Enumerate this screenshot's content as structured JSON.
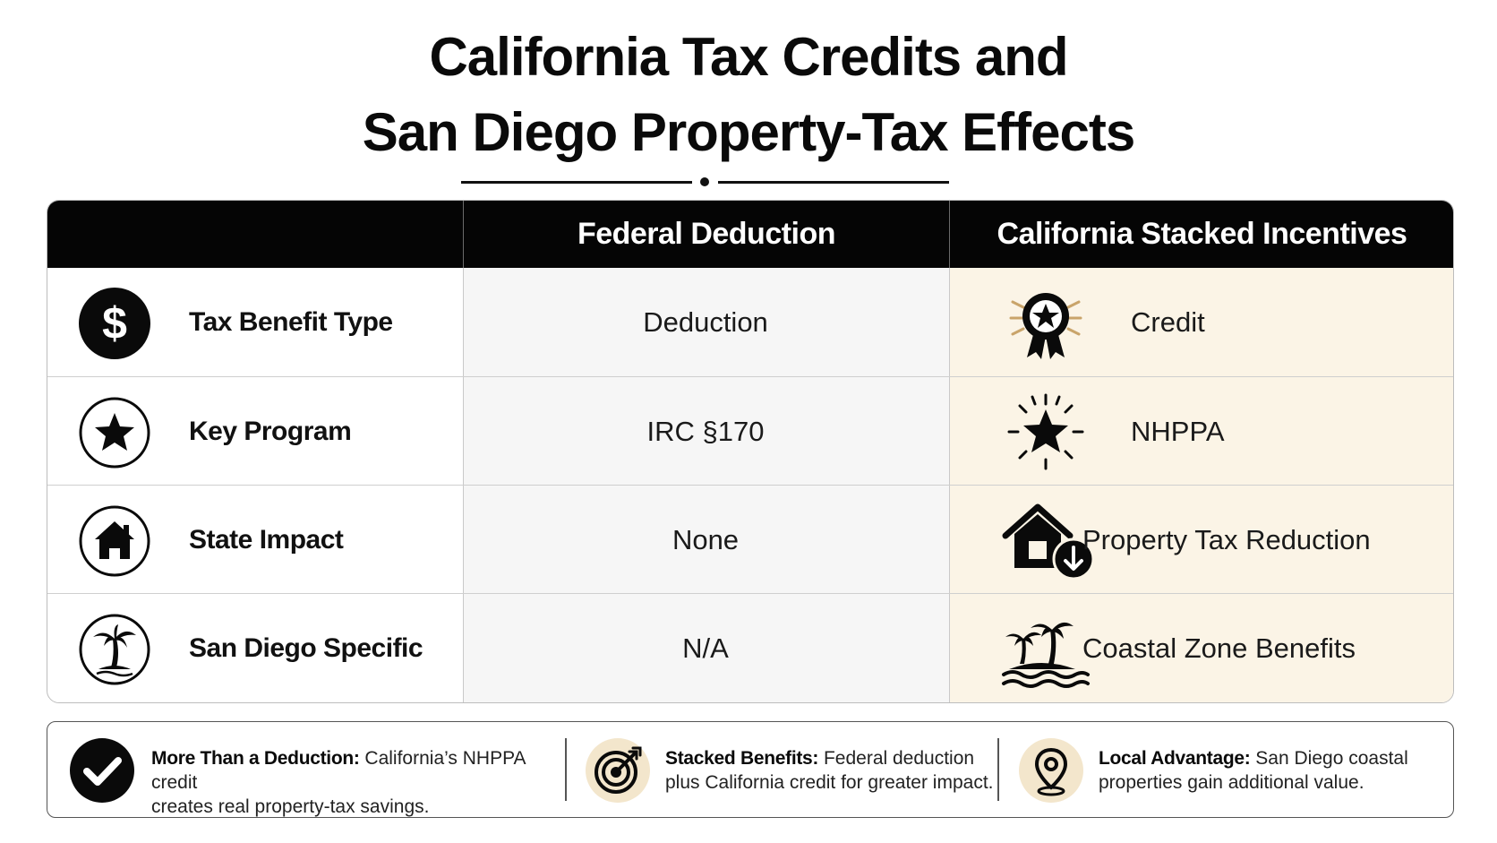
{
  "title": {
    "line1": "California Tax Credits and",
    "line2": "San Diego Property-Tax Effects"
  },
  "table": {
    "headers": [
      "",
      "Federal Deduction",
      "California Stacked Incentives"
    ],
    "rows": [
      {
        "label": "Tax Benefit Type",
        "icon": "dollar-icon",
        "federal": "Deduction",
        "california": "Credit",
        "california_icon": "award-ribbon-icon"
      },
      {
        "label": "Key Program",
        "icon": "star-icon",
        "federal": "IRC §170",
        "california": "NHPPA",
        "california_icon": "shining-star-icon"
      },
      {
        "label": "State Impact",
        "icon": "house-icon",
        "federal": "None",
        "california": "Property Tax Reduction",
        "california_icon": "house-down-arrow-icon"
      },
      {
        "label": "San Diego Specific",
        "icon": "palm-tree-icon",
        "federal": "N/A",
        "california": "Coastal Zone Benefits",
        "california_icon": "palm-island-icon"
      }
    ]
  },
  "footer": {
    "items": [
      {
        "icon": "checkmark-icon",
        "bold": "More Than a Deduction:",
        "text1": " California’s NHPPA credit",
        "text2": "creates real property-tax savings."
      },
      {
        "icon": "target-icon",
        "bold": "Stacked Benefits:",
        "text1": " Federal deduction",
        "text2": "plus California credit for greater impact."
      },
      {
        "icon": "location-pin-icon",
        "bold": "Local Advantage:",
        "text1": " San Diego coastal",
        "text2": "properties gain additional value."
      }
    ]
  },
  "colors": {
    "header_bg": "#050505",
    "federal_col_bg": "#f6f6f6",
    "california_col_bg": "#fbf4e6",
    "accent_gold": "#c9a46a"
  }
}
